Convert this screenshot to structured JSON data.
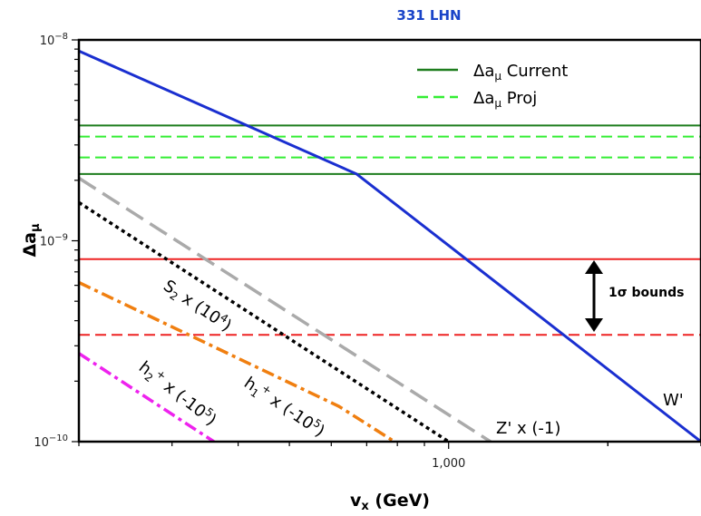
{
  "chart_data": {
    "type": "line",
    "title": "331 LHN",
    "xlabel": "v",
    "xlabel_sub": "x",
    "xlabel_unit": " (GeV)",
    "ylabel": "Δa",
    "ylabel_sub": "μ",
    "x_scale": "log",
    "y_scale": "log",
    "xlim": [
      200,
      3000
    ],
    "ylim": [
      1e-10,
      1e-08
    ],
    "x_ticks": [
      {
        "value": 1000,
        "label": "1,000"
      }
    ],
    "y_ticks": [
      {
        "value": 1e-08,
        "base": "10",
        "exp": "−8"
      },
      {
        "value": 1e-09,
        "base": "10",
        "exp": "−9"
      },
      {
        "value": 1e-10,
        "base": "10",
        "exp": "−10"
      }
    ],
    "legend_position": "top-right",
    "legend": [
      {
        "label": "Δa",
        "sub": "μ",
        "suffix": " Current",
        "color": "#1e7d1e",
        "dash": "solid"
      },
      {
        "label": "Δa",
        "sub": "μ",
        "suffix": " Proj",
        "color": "#33ee33",
        "dash": "dashed"
      }
    ],
    "bands": [
      {
        "name": "current",
        "color": "#1e7d1e",
        "dash": "solid",
        "y": [
          2.15e-09,
          3.75e-09
        ]
      },
      {
        "name": "proj",
        "color": "#33ee33",
        "dash": "dashed",
        "y": [
          2.6e-09,
          3.3e-09
        ]
      },
      {
        "name": "1sigma",
        "color": "#ee2222",
        "dash": [
          "solid",
          "dashed"
        ],
        "y": [
          8.1e-10,
          3.4e-10
        ]
      }
    ],
    "bounds_label": "1σ bounds",
    "series": [
      {
        "key": "W",
        "color": "#1a2fd0",
        "dash": "solid",
        "width": 3,
        "points": [
          [
            200,
            8.8e-09
          ],
          [
            670,
            2.15e-09
          ],
          [
            3000,
            1e-10
          ]
        ]
      },
      {
        "key": "Z",
        "color": "#aaaaaa",
        "dash": "long",
        "width": 3.5,
        "points": [
          [
            200,
            2.05e-09
          ],
          [
            1200,
            1e-10
          ]
        ]
      },
      {
        "key": "S2",
        "color": "#000000",
        "dash": "dot",
        "width": 3.5,
        "points": [
          [
            200,
            1.55e-09
          ],
          [
            1000,
            1e-10
          ]
        ]
      },
      {
        "key": "h1",
        "color": "#f07f10",
        "dash": "dashdot",
        "width": 3.5,
        "points": [
          [
            200,
            6.2e-10
          ],
          [
            620,
            1.5e-10
          ],
          [
            790,
            1e-10
          ]
        ]
      },
      {
        "key": "h2",
        "color": "#ee22ee",
        "dash": "dashdot",
        "width": 3.5,
        "points": [
          [
            200,
            2.75e-10
          ],
          [
            360,
            1e-10
          ]
        ]
      }
    ],
    "annotations": {
      "W": "W'",
      "Z": "Z' x (-1)",
      "S2": {
        "main": "S",
        "sub": "2",
        "mid": " x (10",
        "sup": "4",
        "end": ")"
      },
      "h1": {
        "main": "h",
        "sub": "1",
        "sup1": "+",
        "mid": " x (-10",
        "sup": "5",
        "end": ")"
      },
      "h2": {
        "main": "h",
        "sub": "2",
        "sup1": "+",
        "mid": " x (-10",
        "sup": "5",
        "end": ")"
      }
    }
  }
}
